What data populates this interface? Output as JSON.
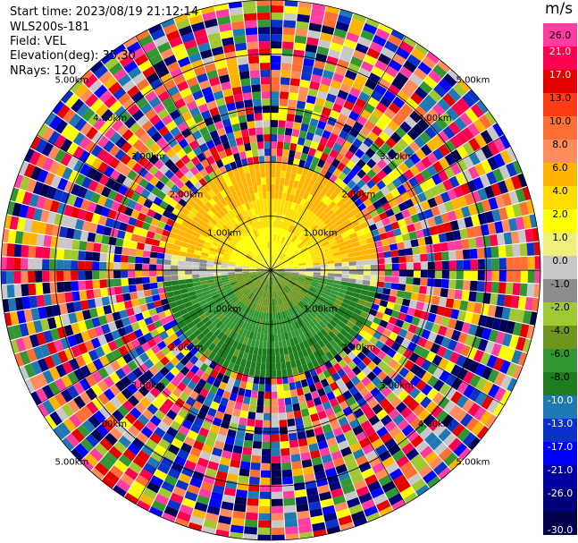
{
  "info": {
    "start_time": "Start time: 2023/08/19 21:12:14",
    "station": "WLS200s-181",
    "field": "Field: VEL",
    "elevation": "Elevation(deg): 35.30",
    "nrays": "NRays: 120"
  },
  "chart_data": {
    "type": "heatmap",
    "plot": "PPI",
    "unit": "m/s",
    "ring_labels": [
      "1.00km",
      "2.00km",
      "3.00km",
      "4.00km",
      "5.00km"
    ],
    "ring_km": [
      1,
      2,
      3,
      4,
      5
    ],
    "colorbar": {
      "labels": [
        "26.0",
        "21.0",
        "17.0",
        "13.0",
        "10.0",
        "8.0",
        "6.0",
        "4.0",
        "2.0",
        "1.0",
        "0.0",
        "-1.0",
        "-2.0",
        "-4.0",
        "-6.0",
        "-8.0",
        "-10.0",
        "-13.0",
        "-17.0",
        "-21.0",
        "-26.0",
        "-30.0"
      ],
      "colors": [
        "#ff3ca0",
        "#ff0050",
        "#e60000",
        "#ff3c14",
        "#ff6e32",
        "#ff8c5a",
        "#ffb400",
        "#ffdc00",
        "#ffff00",
        "#f0f07a",
        "#c8c8c8",
        "#8c8c8c",
        "#a0c832",
        "#6e961e",
        "#329632",
        "#1e7d1e",
        "#1e78b4",
        "#0a32c8",
        "#0000ff",
        "#0000a0",
        "#000078",
        "#00004b"
      ]
    },
    "range_km": 5,
    "valid_range_km": 2.1,
    "n_rays": 120
  }
}
